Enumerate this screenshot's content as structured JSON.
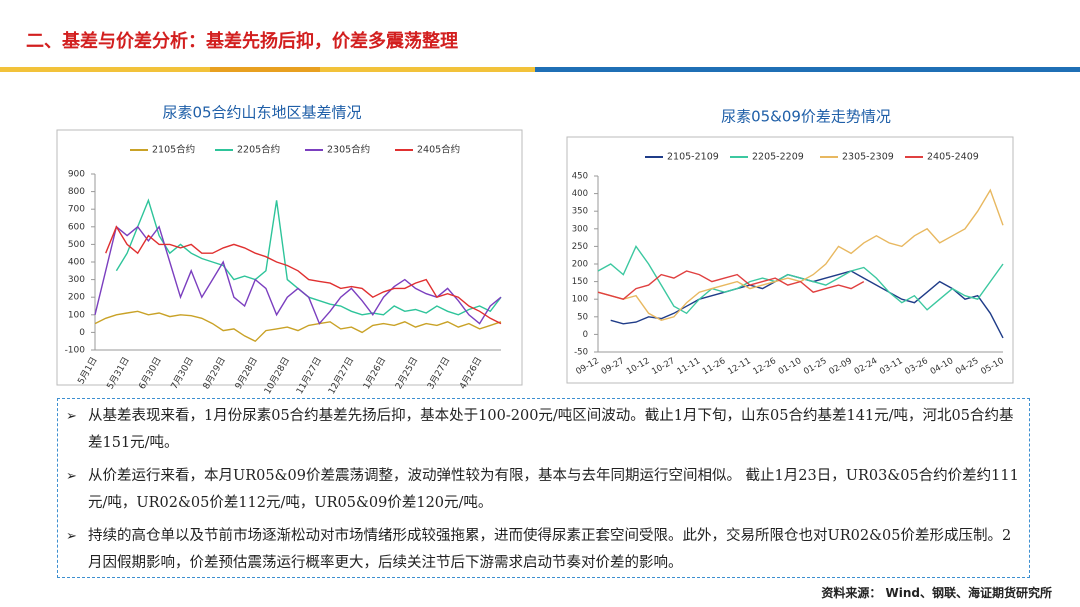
{
  "title": "二、基差与价差分析：基差先扬后抑，价差多震荡整理",
  "chart_data": [
    {
      "type": "line",
      "title": "尿素05合约山东地区基差情况",
      "categories": [
        "5月1日",
        null,
        null,
        "5月31日",
        null,
        null,
        "6月30日",
        null,
        null,
        "7月30日",
        null,
        null,
        "8月29日",
        null,
        null,
        "9月28日",
        null,
        null,
        "10月28日",
        null,
        null,
        "11月27日",
        null,
        null,
        "12月27日",
        null,
        null,
        "1月26日",
        null,
        null,
        "2月25日",
        null,
        null,
        "3月27日",
        null,
        null,
        "4月26日",
        null,
        null
      ],
      "ylim": [
        -100,
        900
      ],
      "yticks": [
        -100,
        0,
        100,
        200,
        300,
        400,
        500,
        600,
        700,
        800,
        900
      ],
      "grid": false,
      "series": [
        {
          "name": "2105合约",
          "color": "#c9a227",
          "values": [
            50,
            80,
            100,
            110,
            120,
            100,
            110,
            90,
            100,
            95,
            80,
            50,
            10,
            20,
            -20,
            -50,
            10,
            20,
            30,
            10,
            40,
            50,
            60,
            20,
            30,
            0,
            40,
            50,
            40,
            60,
            30,
            50,
            40,
            60,
            30,
            50,
            20,
            40,
            60
          ]
        },
        {
          "name": "2205合约",
          "color": "#2ec49a",
          "values": [
            null,
            null,
            350,
            450,
            600,
            750,
            550,
            450,
            500,
            450,
            420,
            400,
            380,
            300,
            320,
            300,
            350,
            750,
            300,
            250,
            200,
            180,
            160,
            150,
            120,
            100,
            110,
            100,
            150,
            120,
            130,
            110,
            150,
            120,
            100,
            130,
            150,
            120,
            200
          ]
        },
        {
          "name": "2305合约",
          "color": "#7b3fbf",
          "values": [
            100,
            350,
            600,
            550,
            600,
            520,
            600,
            400,
            200,
            350,
            200,
            300,
            400,
            200,
            150,
            300,
            250,
            100,
            200,
            250,
            200,
            50,
            120,
            200,
            250,
            180,
            100,
            200,
            260,
            300,
            250,
            220,
            200,
            250,
            180,
            100,
            50,
            150,
            200
          ]
        },
        {
          "name": "2405合约",
          "color": "#e03030",
          "values": [
            null,
            450,
            600,
            500,
            450,
            550,
            500,
            500,
            480,
            500,
            450,
            450,
            480,
            500,
            480,
            450,
            430,
            400,
            380,
            350,
            300,
            290,
            280,
            250,
            260,
            250,
            200,
            230,
            250,
            250,
            280,
            300,
            200,
            220,
            200,
            150,
            120,
            80,
            50
          ]
        }
      ]
    },
    {
      "type": "line",
      "title": "尿素05&09价差走势情况",
      "categories": [
        "09-12",
        null,
        "09-27",
        null,
        "10-12",
        null,
        "10-27",
        null,
        "11-11",
        null,
        "11-26",
        null,
        "12-11",
        null,
        "12-26",
        null,
        "01-10",
        null,
        "01-25",
        null,
        "02-09",
        null,
        "02-24",
        null,
        "03-11",
        null,
        "03-26",
        null,
        "04-10",
        null,
        "04-25",
        null,
        "05-10"
      ],
      "ylim": [
        -50,
        450
      ],
      "yticks": [
        -50,
        0,
        50,
        100,
        150,
        200,
        250,
        300,
        350,
        400,
        450
      ],
      "grid": false,
      "series": [
        {
          "name": "2105-2109",
          "color": "#1f3c88",
          "values": [
            null,
            40,
            30,
            35,
            50,
            45,
            60,
            80,
            100,
            110,
            120,
            130,
            140,
            130,
            150,
            170,
            160,
            150,
            160,
            170,
            180,
            160,
            140,
            120,
            100,
            90,
            120,
            150,
            130,
            100,
            110,
            60,
            -10
          ]
        },
        {
          "name": "2205-2209",
          "color": "#3cc8a0",
          "values": [
            180,
            200,
            170,
            250,
            200,
            140,
            80,
            60,
            100,
            130,
            120,
            130,
            150,
            160,
            150,
            170,
            160,
            150,
            140,
            160,
            180,
            190,
            160,
            120,
            90,
            110,
            70,
            100,
            130,
            110,
            100,
            150,
            200
          ]
        },
        {
          "name": "2305-2309",
          "color": "#e8b860",
          "values": [
            120,
            110,
            100,
            110,
            60,
            40,
            50,
            90,
            120,
            130,
            140,
            150,
            130,
            140,
            150,
            160,
            150,
            170,
            200,
            250,
            230,
            260,
            280,
            260,
            250,
            280,
            300,
            260,
            280,
            300,
            350,
            410,
            310
          ]
        },
        {
          "name": "2405-2409",
          "color": "#e04040",
          "values": [
            120,
            110,
            100,
            130,
            140,
            170,
            160,
            180,
            170,
            150,
            160,
            170,
            140,
            150,
            160,
            140,
            150,
            120,
            130,
            140,
            130,
            150,
            null,
            null,
            null,
            null,
            null,
            null,
            null,
            null,
            null,
            null,
            null
          ]
        }
      ]
    }
  ],
  "bullets": [
    "从基差表现来看，1月份尿素05合约基差先扬后抑，基本处于100-200元/吨区间波动。截止1月下旬，山东05合约基差141元/吨，河北05合约基差151元/吨。",
    "从价差运行来看，本月UR05&09价差震荡调整，波动弹性较为有限，基本与去年同期运行空间相似。 截止1月23日，UR03&05合约价差约111元/吨，UR02&05价差112元/吨，UR05&09价差120元/吨。",
    "持续的高仓单以及节前市场逐渐松动对市场情绪形成较强拖累，进而使得尿素正套空间受限。此外，交易所限仓也对UR02&05价差形成压制。2月因假期影响，价差预估震荡运行概率更大，后续关注节后下游需求启动节奏对价差的影响。"
  ],
  "source": "资料来源： Wind、钢联、海证期货研究所"
}
